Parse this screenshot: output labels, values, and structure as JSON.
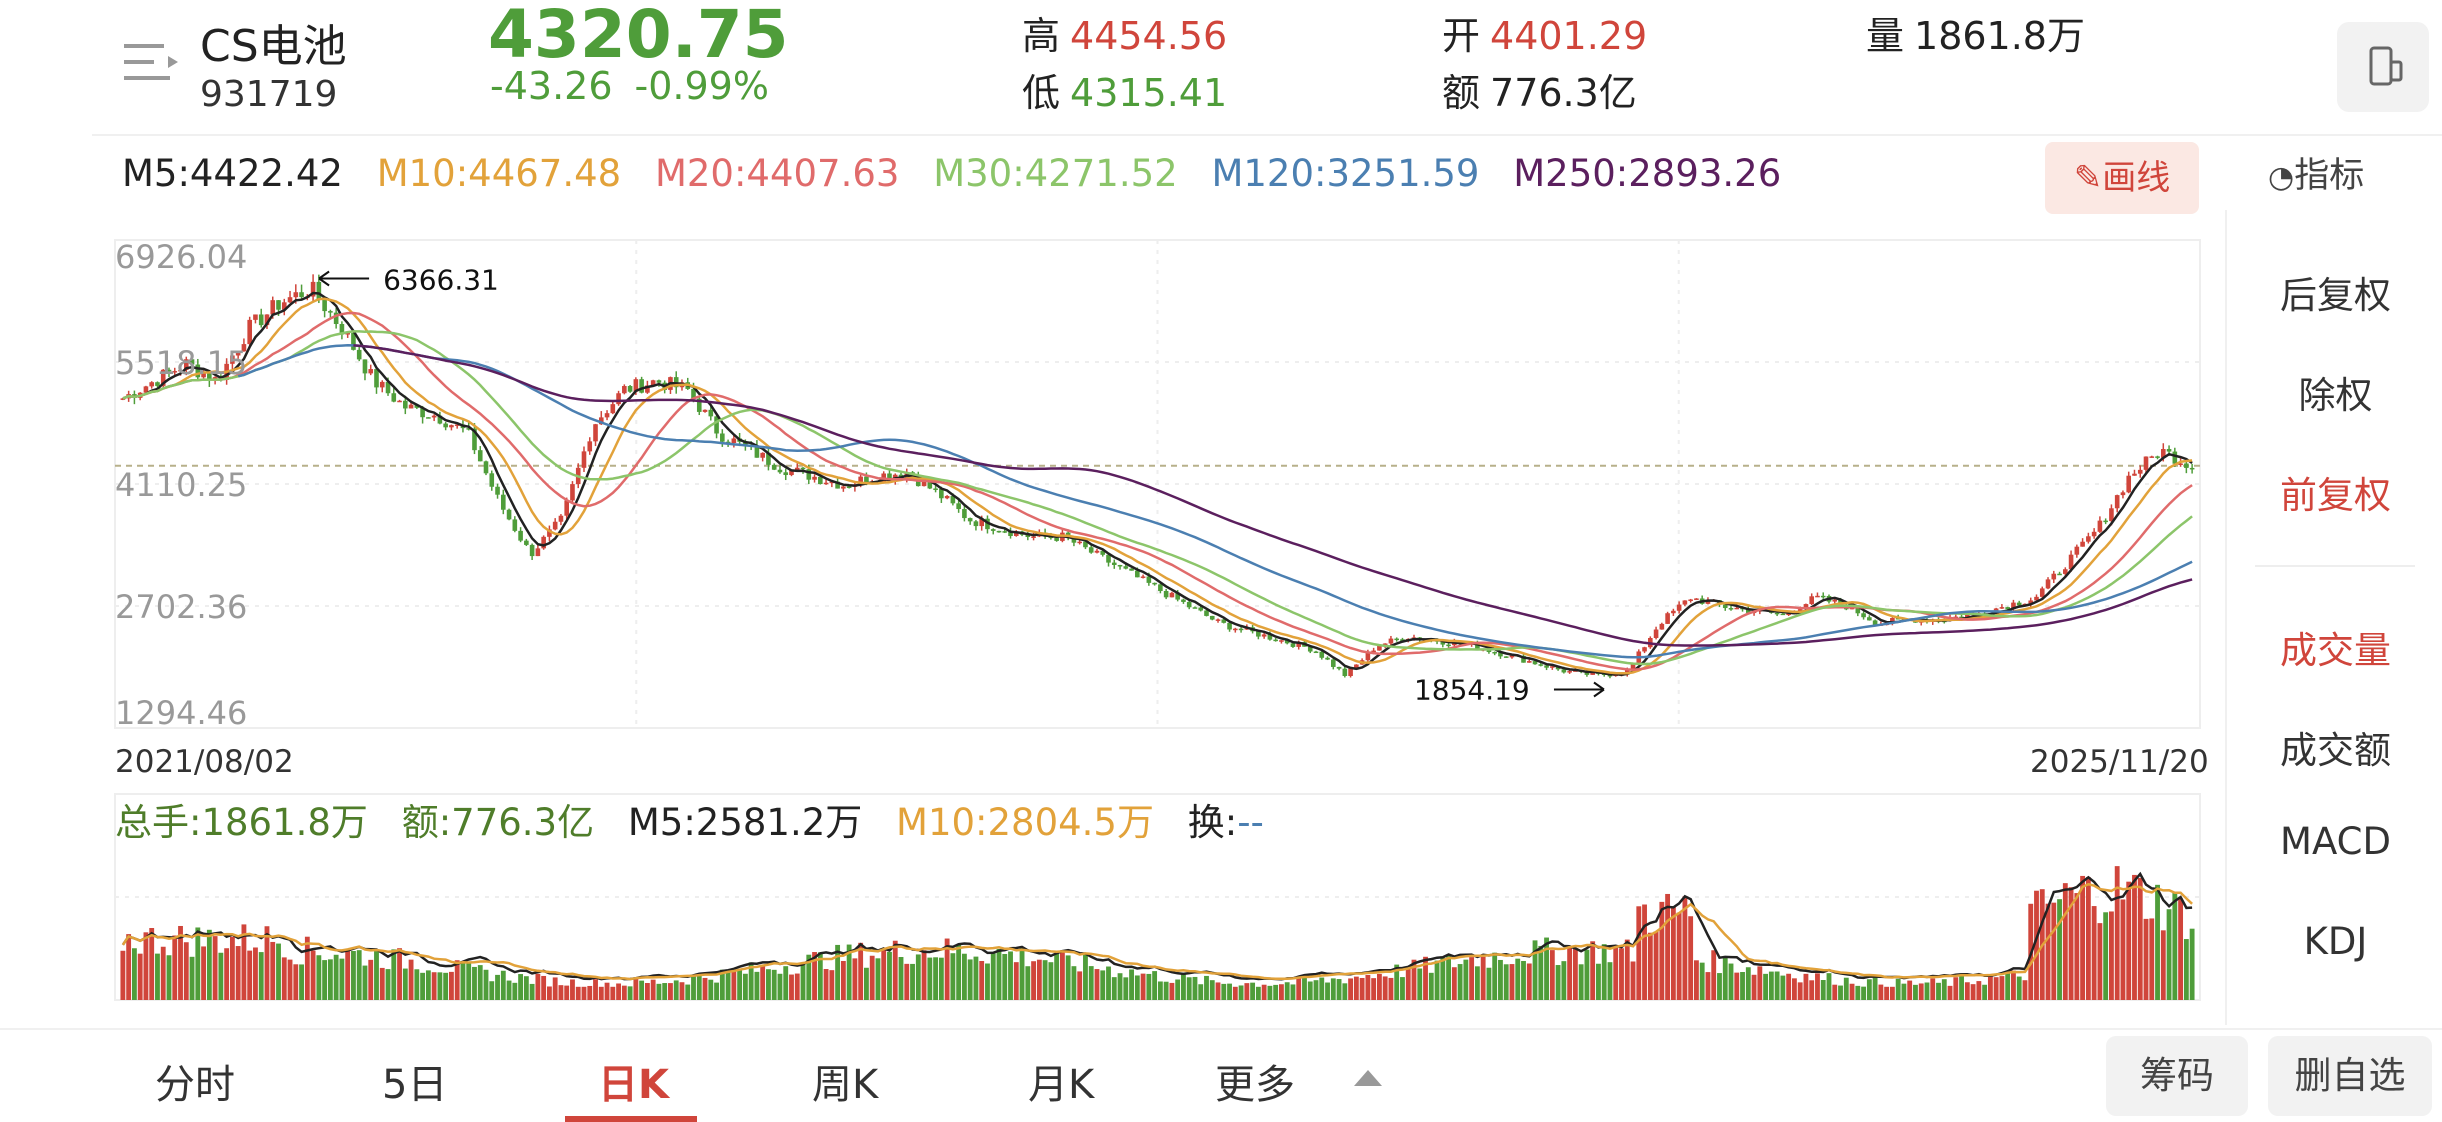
{
  "header": {
    "name": "CS电池",
    "code": "931719",
    "price": "4320.75",
    "change": "-43.26",
    "change_pct": "-0.99%",
    "high_label": "高",
    "high": "4454.56",
    "low_label": "低",
    "low": "4315.41",
    "open_label": "开",
    "open": "4401.29",
    "amount_label": "额",
    "amount": "776.3亿",
    "volume_label": "量",
    "volume": "1861.8万"
  },
  "ma_legend": {
    "m5": "M5:4422.42",
    "m10": "M10:4467.48",
    "m20": "M20:4407.63",
    "m30": "M30:4271.52",
    "m120": "M120:3251.59",
    "m250": "M250:2893.26"
  },
  "draw_button": "画线",
  "indicator_button": "指标",
  "colors": {
    "up": "#d0453b",
    "down": "#4f9d3a",
    "m5": "#222222",
    "m10": "#e2a23a",
    "m20": "#e06b6b",
    "m30": "#8cc56a",
    "m120": "#4b7fb1",
    "m250": "#5b1f5e"
  },
  "chart_data": {
    "type": "candlestick",
    "y_axis_labels": [
      "6926.04",
      "5518.15",
      "4110.25",
      "2702.36",
      "1294.46"
    ],
    "ylim": [
      1294.46,
      6926.04
    ],
    "x_start": "2021/08/02",
    "x_end": "2025/11/20",
    "last_price_line": 4320.75,
    "annotations": [
      {
        "text": "6366.31",
        "value": 6366.31,
        "arrow": "left"
      },
      {
        "text": "1854.19",
        "value": 1854.19,
        "arrow": "right"
      }
    ],
    "close_series": [
      5100,
      5300,
      5500,
      5300,
      5900,
      6200,
      6366,
      5900,
      5300,
      5000,
      4900,
      4700,
      3900,
      3300,
      3700,
      4800,
      5200,
      5300,
      5200,
      4700,
      4500,
      4300,
      4200,
      4100,
      4200,
      4250,
      4000,
      3700,
      3600,
      3500,
      3500,
      3300,
      3100,
      2900,
      2700,
      2500,
      2400,
      2300,
      2200,
      1900,
      2250,
      2350,
      2300,
      2250,
      2150,
      2050,
      1950,
      1900,
      1950,
      2500,
      2800,
      2700,
      2650,
      2600,
      2800,
      2700,
      2500,
      2550,
      2550,
      2600,
      2700,
      2800,
      3200,
      3600,
      4200,
      4500,
      4320
    ]
  },
  "volume_legend": {
    "total": "总手:1861.8万",
    "amount": "额:776.3亿",
    "m5": "M5:2581.2万",
    "m10": "M10:2804.5万",
    "turnover_label": "换:",
    "turnover_value": "--"
  },
  "right_panel": {
    "back_adjust": "后复权",
    "no_adjust": "除权",
    "front_adjust": "前复权",
    "volume": "成交量",
    "amount": "成交额",
    "macd": "MACD",
    "kdj": "KDJ"
  },
  "tabs": {
    "intraday": "分时",
    "five_day": "5日",
    "daily": "日K",
    "weekly": "周K",
    "monthly": "月K",
    "more": "更多"
  },
  "bottom_buttons": {
    "chips": "筹码",
    "remove_watch": "删自选"
  }
}
